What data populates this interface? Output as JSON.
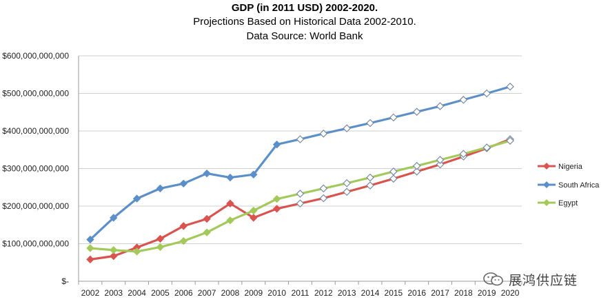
{
  "chart_data": {
    "type": "line",
    "title": "GDP (in 2011 USD) 2002-2020.",
    "subtitle_lines": [
      "Projections Based on Historical Data 2002-2010.",
      "Data Source: World Bank"
    ],
    "xlabel": "",
    "ylabel": "",
    "ylim": [
      0,
      600000000000
    ],
    "y_ticks": [
      0,
      100000000000,
      200000000000,
      300000000000,
      400000000000,
      500000000000,
      600000000000
    ],
    "y_tick_labels": [
      "$-",
      "$100,000,000,000",
      "$200,000,000,000",
      "$300,000,000,000",
      "$400,000,000,000",
      "$500,000,000,000",
      "$600,000,000,000"
    ],
    "categories": [
      "2002",
      "2003",
      "2004",
      "2005",
      "2006",
      "2007",
      "2008",
      "2009",
      "2010",
      "2011",
      "2012",
      "2013",
      "2014",
      "2015",
      "2016",
      "2017",
      "2018",
      "2019",
      "2020"
    ],
    "historical_through": "2010",
    "grid": "horizontal",
    "legend_position": "right",
    "series": [
      {
        "name": "Nigeria",
        "color": "#d9534f",
        "values": [
          58000000000,
          67000000000,
          90000000000,
          113000000000,
          147000000000,
          166000000000,
          207000000000,
          169000000000,
          193000000000,
          207000000000,
          221000000000,
          238000000000,
          255000000000,
          273000000000,
          292000000000,
          311000000000,
          332000000000,
          354000000000,
          378000000000
        ]
      },
      {
        "name": "South Africa",
        "color": "#5b8fc9",
        "values": [
          111000000000,
          169000000000,
          220000000000,
          247000000000,
          260000000000,
          287000000000,
          276000000000,
          284000000000,
          364000000000,
          378000000000,
          393000000000,
          407000000000,
          421000000000,
          436000000000,
          451000000000,
          466000000000,
          483000000000,
          500000000000,
          518000000000
        ]
      },
      {
        "name": "Egypt",
        "color": "#a3c95a",
        "values": [
          88000000000,
          83000000000,
          79000000000,
          91000000000,
          107000000000,
          130000000000,
          162000000000,
          188000000000,
          219000000000,
          233000000000,
          247000000000,
          261000000000,
          276000000000,
          292000000000,
          307000000000,
          323000000000,
          339000000000,
          356000000000,
          374000000000
        ]
      }
    ]
  },
  "watermark": {
    "text": "展鸿供应链",
    "icon": "wechat-icon"
  }
}
